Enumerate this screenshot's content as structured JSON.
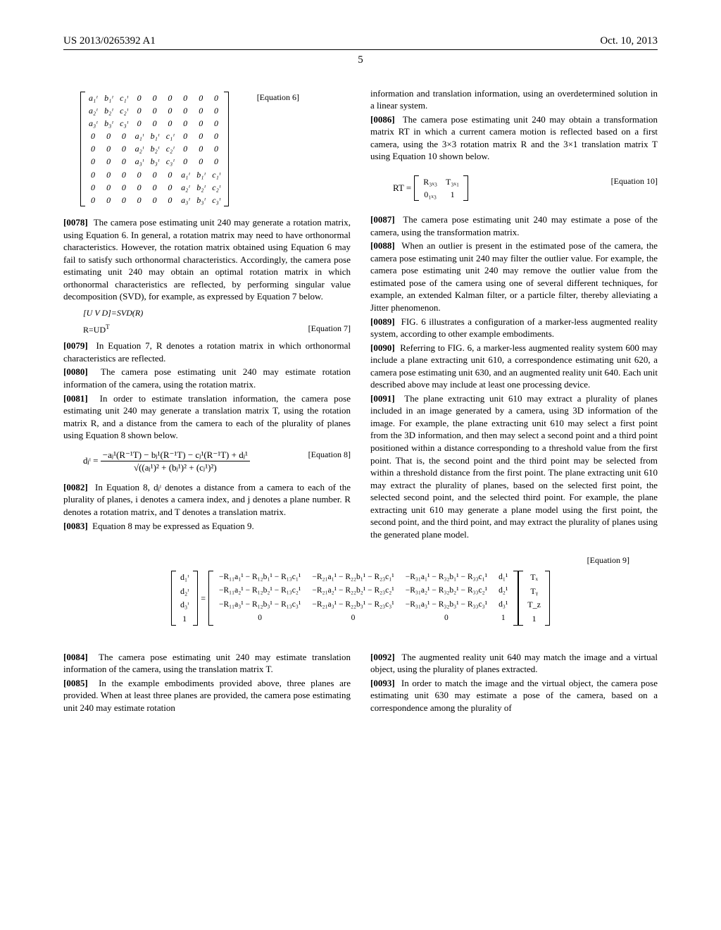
{
  "header": {
    "left": "US 2013/0265392 A1",
    "right": "Oct. 10, 2013"
  },
  "page_number": "5",
  "labels": {
    "eq6": "[Equation 6]",
    "eq7": "[Equation 7]",
    "eq8": "[Equation 8]",
    "eq9": "[Equation 9]",
    "eq10": "[Equation 10]"
  },
  "eq_svd": "[U V D]=SVD(R)",
  "eq_rud": "R=UD",
  "eq_rud_sup": "T",
  "matrix6": [
    [
      "a₁ᶦ",
      "b₁ᶦ",
      "c₁ᶦ",
      "0",
      "0",
      "0",
      "0",
      "0",
      "0"
    ],
    [
      "a₂ᶦ",
      "b₂ᶦ",
      "c₂ᶦ",
      "0",
      "0",
      "0",
      "0",
      "0",
      "0"
    ],
    [
      "a₃ᶦ",
      "b₃ᶦ",
      "c₃ᶦ",
      "0",
      "0",
      "0",
      "0",
      "0",
      "0"
    ],
    [
      "0",
      "0",
      "0",
      "a₁ᶦ",
      "b₁ᶦ",
      "c₁ᶦ",
      "0",
      "0",
      "0"
    ],
    [
      "0",
      "0",
      "0",
      "a₂ᶦ",
      "b₂ᶦ",
      "c₂ᶦ",
      "0",
      "0",
      "0"
    ],
    [
      "0",
      "0",
      "0",
      "a₃ᶦ",
      "b₃ᶦ",
      "c₃ᶦ",
      "0",
      "0",
      "0"
    ],
    [
      "0",
      "0",
      "0",
      "0",
      "0",
      "0",
      "a₁ᶦ",
      "b₁ᶦ",
      "c₁ᶦ"
    ],
    [
      "0",
      "0",
      "0",
      "0",
      "0",
      "0",
      "a₂ᶦ",
      "b₂ᶦ",
      "c₂ᶦ"
    ],
    [
      "0",
      "0",
      "0",
      "0",
      "0",
      "0",
      "a₃ᶦ",
      "b₃ᶦ",
      "c₃ᶦ"
    ]
  ],
  "eq8": {
    "lhs": "dⱼᶦ =",
    "num": "−aⱼ¹(R⁻¹T) − bⱼ¹(R⁻¹T) − cⱼ¹(R⁻¹T) + dⱼ¹",
    "den": "√((aⱼ¹)² + (bⱼ¹)² + (cⱼ¹)²)"
  },
  "eq10": {
    "lhs": "RT =",
    "r1c1": "R₃ₓ₃",
    "r1c2": "T₃ₓ₁",
    "r2c1": "0₁ₓ₃",
    "r2c2": "1"
  },
  "eq9": {
    "lcol": [
      "d₁ᶦ",
      "d₂ᶦ",
      "d₃ᶦ",
      "1"
    ],
    "body": [
      [
        "−R₁₁a₁¹ − R₁₂b₁¹ − R₁₃c₁¹",
        "−R₂₁a₁¹ − R₂₂b₁¹ − R₂₃c₁¹",
        "−R₃₁a₁¹ − R₃₂b₁¹ − R₃₃c₁¹",
        "d₁¹"
      ],
      [
        "−R₁₁a₂¹ − R₁₂b₂¹ − R₁₃c₂¹",
        "−R₂₁a₂¹ − R₂₂b₂¹ − R₂₃c₂¹",
        "−R₃₁a₂¹ − R₃₂b₂¹ − R₃₃c₂¹",
        "d₂¹"
      ],
      [
        "−R₁₁a₃¹ − R₁₂b₃¹ − R₁₃c₃¹",
        "−R₂₁a₃¹ − R₂₂b₃¹ − R₂₃c₃¹",
        "−R₃₁a₃¹ − R₃₂b₃¹ − R₃₃c₃¹",
        "d₃¹"
      ],
      [
        "0",
        "0",
        "0",
        "1"
      ]
    ],
    "rcol": [
      "Tₓ",
      "Tᵧ",
      "T_z",
      "1"
    ]
  },
  "left": {
    "p78": "The camera pose estimating unit 240 may generate a rotation matrix, using Equation 6. In general, a rotation matrix may need to have orthonormal characteristics. However, the rotation matrix obtained using Equation 6 may fail to satisfy such orthonormal characteristics. Accordingly, the camera pose estimating unit 240 may obtain an optimal rotation matrix in which orthonormal characteristics are reflected, by performing singular value decomposition (SVD), for example, as expressed by Equation 7 below.",
    "p79": "In Equation 7, R denotes a rotation matrix in which orthonormal characteristics are reflected.",
    "p80": "The camera pose estimating unit 240 may estimate rotation information of the camera, using the rotation matrix.",
    "p81": "In order to estimate translation information, the camera pose estimating unit 240 may generate a translation matrix T, using the rotation matrix R, and a distance from the camera to each of the plurality of planes using Equation 8 shown below.",
    "p82": "In Equation 8, dⱼᶦ denotes a distance from a camera to each of the plurality of planes, i denotes a camera index, and j denotes a plane number. R denotes a rotation matrix, and T denotes a translation matrix.",
    "p83": "Equation 8 may be expressed as Equation 9.",
    "p84": "The camera pose estimating unit 240 may estimate translation information of the camera, using the translation matrix T.",
    "p85": "In the example embodiments provided above, three planes are provided. When at least three planes are provided, the camera pose estimating unit 240 may estimate rotation"
  },
  "right": {
    "cont": "information and translation information, using an overdetermined solution in a linear system.",
    "p86": "The camera pose estimating unit 240 may obtain a transformation matrix RT in which a current camera motion is reflected based on a first camera, using the 3×3 rotation matrix R and the 3×1 translation matrix T using Equation 10 shown below.",
    "p87": "The camera pose estimating unit 240 may estimate a pose of the camera, using the transformation matrix.",
    "p88": "When an outlier is present in the estimated pose of the camera, the camera pose estimating unit 240 may filter the outlier value. For example, the camera pose estimating unit 240 may remove the outlier value from the estimated pose of the camera using one of several different techniques, for example, an extended Kalman filter, or a particle filter, thereby alleviating a Jitter phenomenon.",
    "p89": "FIG. 6 illustrates a configuration of a marker-less augmented reality system, according to other example embodiments.",
    "p90": "Referring to FIG. 6, a marker-less augmented reality system 600 may include a plane extracting unit 610, a correspondence estimating unit 620, a camera pose estimating unit 630, and an augmented reality unit 640. Each unit described above may include at least one processing device.",
    "p91": "The plane extracting unit 610 may extract a plurality of planes included in an image generated by a camera, using 3D information of the image. For example, the plane extracting unit 610 may select a first point from the 3D information, and then may select a second point and a third point positioned within a distance corresponding to a threshold value from the first point. That is, the second point and the third point may be selected from within a threshold distance from the first point. The plane extracting unit 610 may extract the plurality of planes, based on the selected first point, the selected second point, and the selected third point. For example, the plane extracting unit 610 may generate a plane model using the first point, the second point, and the third point, and may extract the plurality of planes using the generated plane model.",
    "p92": "The augmented reality unit 640 may match the image and a virtual object, using the plurality of planes extracted.",
    "p93": "In order to match the image and the virtual object, the camera pose estimating unit 630 may estimate a pose of the camera, based on a correspondence among the plurality of"
  },
  "nums": {
    "n78": "[0078]",
    "n79": "[0079]",
    "n80": "[0080]",
    "n81": "[0081]",
    "n82": "[0082]",
    "n83": "[0083]",
    "n84": "[0084]",
    "n85": "[0085]",
    "n86": "[0086]",
    "n87": "[0087]",
    "n88": "[0088]",
    "n89": "[0089]",
    "n90": "[0090]",
    "n91": "[0091]",
    "n92": "[0092]",
    "n93": "[0093]"
  }
}
